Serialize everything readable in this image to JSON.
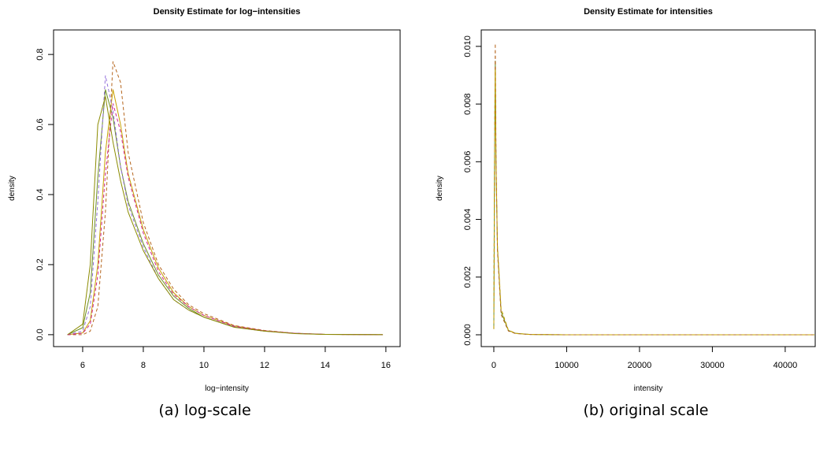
{
  "chart_data": [
    {
      "type": "line",
      "title": "Density Estimate for log−intensities",
      "xlabel": "log−intensity",
      "ylabel": "density",
      "caption": "(a) log-scale",
      "xlim": [
        5.04,
        16.47
      ],
      "ylim": [
        -0.034,
        0.87
      ],
      "xticks": [
        6,
        8,
        10,
        12,
        14,
        16
      ],
      "yticks": [
        {
          "value": 0,
          "label": "0.0"
        },
        0.2,
        0.4,
        0.6,
        0.8
      ],
      "x": [
        5.5,
        6,
        6.25,
        6.5,
        6.75,
        7,
        7.25,
        7.5,
        8,
        8.5,
        9,
        9.5,
        10,
        11,
        12,
        13,
        14,
        15.9
      ],
      "series": [
        {
          "color": "#6b8e23",
          "dashed": false,
          "values": [
            0,
            0.02,
            0.12,
            0.45,
            0.7,
            0.62,
            0.48,
            0.38,
            0.26,
            0.17,
            0.11,
            0.075,
            0.05,
            0.022,
            0.01,
            0.004,
            0.001,
            0
          ]
        },
        {
          "color": "#c8a000",
          "dashed": false,
          "values": [
            0,
            0.005,
            0.04,
            0.2,
            0.52,
            0.7,
            0.6,
            0.46,
            0.3,
            0.19,
            0.12,
            0.08,
            0.055,
            0.025,
            0.011,
            0.004,
            0.001,
            0
          ]
        },
        {
          "color": "#b5651d",
          "dashed": true,
          "values": [
            0,
            0,
            0.01,
            0.08,
            0.35,
            0.78,
            0.72,
            0.52,
            0.32,
            0.2,
            0.13,
            0.085,
            0.06,
            0.026,
            0.012,
            0.004,
            0.001,
            0
          ]
        },
        {
          "color": "#9370db",
          "dashed": true,
          "values": [
            0,
            0.01,
            0.08,
            0.38,
            0.74,
            0.64,
            0.48,
            0.37,
            0.25,
            0.16,
            0.1,
            0.07,
            0.05,
            0.022,
            0.01,
            0.004,
            0.001,
            0
          ]
        },
        {
          "color": "#d02090",
          "dashed": true,
          "values": [
            0,
            0.004,
            0.03,
            0.17,
            0.46,
            0.66,
            0.58,
            0.45,
            0.29,
            0.18,
            0.115,
            0.08,
            0.055,
            0.024,
            0.011,
            0.004,
            0.001,
            0
          ]
        },
        {
          "color": "#8b8b00",
          "dashed": false,
          "values": [
            0,
            0.03,
            0.2,
            0.6,
            0.68,
            0.55,
            0.44,
            0.35,
            0.24,
            0.16,
            0.1,
            0.07,
            0.05,
            0.021,
            0.01,
            0.003,
            0.001,
            0
          ]
        }
      ]
    },
    {
      "type": "line",
      "title": "Density Estimate for intensities",
      "xlabel": "intensity",
      "ylabel": "density",
      "caption": "(b) original scale",
      "xlim": [
        -1726,
        44120
      ],
      "ylim": [
        -0.00041,
        0.01057
      ],
      "xticks": [
        0,
        10000,
        20000,
        30000,
        40000
      ],
      "yticks": [
        {
          "value": 0,
          "label": "0.000"
        },
        0.002,
        0.004,
        0.006,
        0.008,
        {
          "value": 0.01,
          "label": "0.010"
        }
      ],
      "x": [
        0,
        100,
        200,
        300,
        500,
        1000,
        2000,
        3000,
        5000,
        10000,
        20000,
        30000,
        40000,
        44000
      ],
      "series": [
        {
          "color": "#6b8e23",
          "dashed": false,
          "values": [
            0.0002,
            0.006,
            0.0095,
            0.006,
            0.003,
            0.0008,
            0.00015,
            5e-05,
            1e-05,
            0,
            0,
            0,
            0,
            0
          ]
        },
        {
          "color": "#b5651d",
          "dashed": true,
          "values": [
            0.0002,
            0.0065,
            0.0101,
            0.0062,
            0.0029,
            0.0007,
            0.00013,
            4e-05,
            1e-05,
            0,
            0,
            0,
            0,
            0
          ]
        },
        {
          "color": "#c8a000",
          "dashed": true,
          "values": [
            0.0002,
            0.0058,
            0.0092,
            0.0059,
            0.0031,
            0.0009,
            0.00016,
            5e-05,
            1e-05,
            0,
            0,
            0,
            0,
            0
          ]
        }
      ]
    }
  ]
}
